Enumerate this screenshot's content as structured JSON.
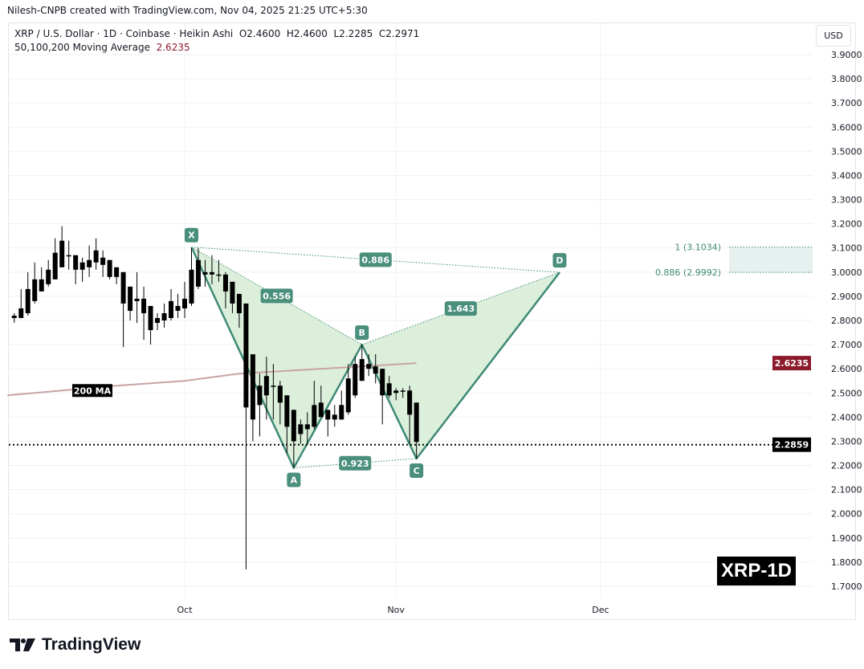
{
  "credit": "Nilesh-CNPB created with TradingView.com, Nov 04, 2025 21:25 UTC+5:30",
  "legend": {
    "symbol_line": "XRP / U.S. Dollar · 1D · Coinbase · Heikin Ashi",
    "open": "O2.4600",
    "high": "H2.4600",
    "low": "L2.2285",
    "close": "C2.2971",
    "ma_label": "50,100,200 Moving Average",
    "ma_value": "2.6235"
  },
  "currency_button": "USD",
  "watermark_tag": "XRP-1D",
  "logo_text": "TradingView",
  "colors": {
    "candle": "#000000",
    "pattern_line": "#3f8a75",
    "pattern_fill": "#d7edd7",
    "label_bg": "#4a8f7c",
    "ma": "#c9a3a3",
    "ma_badge": "#8b1a2b",
    "zone_fill": "#e6f0ee"
  },
  "chart_data": {
    "type": "candlestick",
    "chart_style": "Heikin Ashi",
    "ylim": [
      1.7,
      3.9
    ],
    "yticks": [
      "3.9000",
      "3.8000",
      "3.7000",
      "3.6000",
      "3.5000",
      "3.4000",
      "3.3000",
      "3.2000",
      "3.1000",
      "3.0000",
      "2.9000",
      "2.8000",
      "2.7000",
      "2.6000",
      "2.5000",
      "2.4000",
      "2.3000",
      "2.2000",
      "2.1000",
      "2.0000",
      "1.9000",
      "1.8000",
      "1.7000"
    ],
    "xticks": [
      {
        "label": "Oct",
        "date": "2025-10-01"
      },
      {
        "label": "Nov",
        "date": "2025-11-01"
      },
      {
        "label": "Dec",
        "date": "2025-12-01"
      }
    ],
    "grid": true,
    "fields": [
      "date",
      "open",
      "high",
      "low",
      "close"
    ],
    "candles": [
      [
        "2025-09-06",
        2.81,
        2.83,
        2.79,
        2.82
      ],
      [
        "2025-09-07",
        2.81,
        2.93,
        2.81,
        2.85
      ],
      [
        "2025-09-08",
        2.83,
        3.0,
        2.82,
        2.93
      ],
      [
        "2025-09-09",
        2.88,
        3.04,
        2.87,
        2.97
      ],
      [
        "2025-09-10",
        2.92,
        3.02,
        2.92,
        2.97
      ],
      [
        "2025-09-11",
        2.95,
        3.05,
        2.94,
        3.01
      ],
      [
        "2025-09-12",
        2.97,
        3.14,
        2.97,
        3.08
      ],
      [
        "2025-09-13",
        3.02,
        3.19,
        3.02,
        3.13
      ],
      [
        "2025-09-14",
        3.07,
        3.13,
        3.01,
        3.07
      ],
      [
        "2025-09-15",
        3.07,
        3.07,
        2.95,
        3.01
      ],
      [
        "2025-09-16",
        3.01,
        3.06,
        2.96,
        3.04
      ],
      [
        "2025-09-17",
        3.02,
        3.11,
        2.98,
        3.05
      ],
      [
        "2025-09-18",
        3.04,
        3.14,
        3.01,
        3.09
      ],
      [
        "2025-09-19",
        3.06,
        3.09,
        2.98,
        3.03
      ],
      [
        "2025-09-20",
        3.05,
        3.05,
        2.97,
        2.98
      ],
      [
        "2025-09-21",
        3.02,
        3.02,
        2.95,
        2.98
      ],
      [
        "2025-09-22",
        3.0,
        3.0,
        2.69,
        2.87
      ],
      [
        "2025-09-23",
        2.94,
        2.94,
        2.8,
        2.84
      ],
      [
        "2025-09-24",
        2.89,
        3.0,
        2.79,
        2.88
      ],
      [
        "2025-09-25",
        2.89,
        2.94,
        2.72,
        2.83
      ],
      [
        "2025-09-26",
        2.86,
        2.86,
        2.7,
        2.76
      ],
      [
        "2025-09-27",
        2.79,
        2.83,
        2.76,
        2.81
      ],
      [
        "2025-09-28",
        2.8,
        2.87,
        2.77,
        2.83
      ],
      [
        "2025-09-29",
        2.81,
        2.93,
        2.8,
        2.88
      ],
      [
        "2025-09-30",
        2.86,
        2.91,
        2.81,
        2.84
      ],
      [
        "2025-10-01",
        2.85,
        2.96,
        2.81,
        2.89
      ],
      [
        "2025-10-02",
        2.87,
        3.1,
        2.86,
        3.01
      ],
      [
        "2025-10-03",
        2.94,
        3.1,
        2.93,
        3.05
      ],
      [
        "2025-10-04",
        2.99,
        3.05,
        2.94,
        3.0
      ],
      [
        "2025-10-05",
        2.99,
        3.07,
        2.95,
        3.0
      ],
      [
        "2025-10-06",
        2.99,
        3.05,
        2.96,
        2.99
      ],
      [
        "2025-10-07",
        2.99,
        3.0,
        2.85,
        2.92
      ],
      [
        "2025-10-08",
        2.96,
        2.96,
        2.83,
        2.87
      ],
      [
        "2025-10-09",
        2.91,
        2.91,
        2.77,
        2.83
      ],
      [
        "2025-10-10",
        2.87,
        2.87,
        1.77,
        2.44
      ],
      [
        "2025-10-11",
        2.66,
        2.66,
        2.3,
        2.39
      ],
      [
        "2025-10-12",
        2.53,
        2.58,
        2.32,
        2.45
      ],
      [
        "2025-10-13",
        2.49,
        2.65,
        2.39,
        2.57
      ],
      [
        "2025-10-14",
        2.53,
        2.62,
        2.39,
        2.53
      ],
      [
        "2025-10-15",
        2.53,
        2.55,
        2.37,
        2.46
      ],
      [
        "2025-10-16",
        2.49,
        2.49,
        2.25,
        2.36
      ],
      [
        "2025-10-17",
        2.43,
        2.43,
        2.19,
        2.3
      ],
      [
        "2025-10-18",
        2.33,
        2.39,
        2.29,
        2.37
      ],
      [
        "2025-10-19",
        2.35,
        2.42,
        2.29,
        2.37
      ],
      [
        "2025-10-20",
        2.36,
        2.55,
        2.35,
        2.45
      ],
      [
        "2025-10-21",
        2.4,
        2.53,
        2.4,
        2.46
      ],
      [
        "2025-10-22",
        2.43,
        2.43,
        2.32,
        2.39
      ],
      [
        "2025-10-23",
        2.39,
        2.45,
        2.36,
        2.41
      ],
      [
        "2025-10-24",
        2.39,
        2.51,
        2.39,
        2.45
      ],
      [
        "2025-10-25",
        2.42,
        2.62,
        2.41,
        2.56
      ],
      [
        "2025-10-26",
        2.49,
        2.65,
        2.48,
        2.62
      ],
      [
        "2025-10-27",
        2.55,
        2.7,
        2.55,
        2.64
      ],
      [
        "2025-10-28",
        2.62,
        2.66,
        2.57,
        2.6
      ],
      [
        "2025-10-29",
        2.61,
        2.66,
        2.54,
        2.58
      ],
      [
        "2025-10-30",
        2.6,
        2.6,
        2.37,
        2.49
      ],
      [
        "2025-10-31",
        2.54,
        2.57,
        2.48,
        2.49
      ],
      [
        "2025-11-01",
        2.51,
        2.52,
        2.47,
        2.5
      ],
      [
        "2025-11-02",
        2.51,
        2.52,
        2.48,
        2.51
      ],
      [
        "2025-11-03",
        2.51,
        2.53,
        2.29,
        2.41
      ],
      [
        "2025-11-04",
        2.46,
        2.46,
        2.2285,
        2.2971
      ]
    ],
    "moving_average": {
      "label": "200 MA",
      "points": [
        [
          "2025-09-05",
          2.49
        ],
        [
          "2025-09-13",
          2.51
        ],
        [
          "2025-09-21",
          2.53
        ],
        [
          "2025-10-01",
          2.55
        ],
        [
          "2025-10-09",
          2.58
        ],
        [
          "2025-10-21",
          2.6
        ],
        [
          "2025-11-04",
          2.6235
        ]
      ]
    },
    "current_price": "2.2859",
    "ma_price_badge": "2.6235",
    "harmonic_pattern": {
      "points": [
        {
          "label": "X",
          "date": "2025-10-02",
          "price": 3.1034
        },
        {
          "label": "A",
          "date": "2025-10-17",
          "price": 2.19
        },
        {
          "label": "B",
          "date": "2025-10-27",
          "price": 2.7
        },
        {
          "label": "C",
          "date": "2025-11-04",
          "price": 2.2285
        },
        {
          "label": "D",
          "date": "2025-11-25",
          "price": 2.9992
        }
      ],
      "ratios": [
        {
          "from": "X",
          "to": "B",
          "value": "0.556"
        },
        {
          "from": "X",
          "to": "D",
          "value": "0.886"
        },
        {
          "from": "A",
          "to": "C",
          "value": "0.923"
        },
        {
          "from": "B",
          "to": "D",
          "value": "1.643"
        }
      ]
    },
    "target_zone": {
      "upper": {
        "label": "1 (3.1034)",
        "price": 3.1034
      },
      "lower": {
        "label": "0.886 (2.9992)",
        "price": 2.9992
      }
    }
  }
}
